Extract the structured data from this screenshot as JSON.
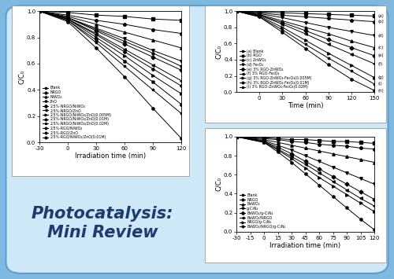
{
  "title": "Photocatalysis:\nMini Review",
  "chart_data": [
    {
      "type": "line",
      "xlabel": "Irradiation time (min)",
      "ylabel": "C/C₀",
      "x": [
        -30,
        0,
        30,
        60,
        90,
        120
      ],
      "xlim": [
        -30,
        120
      ],
      "xticks": [
        -30,
        0,
        30,
        60,
        90,
        120
      ],
      "ylim": [
        0.0,
        1.0
      ],
      "yticks": [
        0.0,
        0.2,
        0.4,
        0.6,
        0.8,
        1.0
      ],
      "grid": false,
      "legend": "lower left",
      "color": "#000000",
      "line_style": "solid",
      "series": [
        {
          "name": "Blank",
          "marker": "square",
          "values": [
            1.0,
            0.99,
            0.97,
            0.96,
            0.94,
            0.93
          ]
        },
        {
          "name": "NRGO",
          "marker": "circle",
          "values": [
            1.0,
            0.97,
            0.93,
            0.9,
            0.86,
            0.83
          ]
        },
        {
          "name": "NiWO₄",
          "marker": "triangle_up",
          "values": [
            1.0,
            0.96,
            0.9,
            0.84,
            0.78,
            0.72
          ]
        },
        {
          "name": "ZnO",
          "marker": "triangle_down",
          "values": [
            1.0,
            0.95,
            0.87,
            0.79,
            0.7,
            0.62
          ]
        },
        {
          "name": "2.5%-NRGO/NiWO₄",
          "marker": "diamond",
          "values": [
            1.0,
            0.95,
            0.85,
            0.75,
            0.65,
            0.55
          ]
        },
        {
          "name": "2.5%-NRGO/ZnO",
          "marker": "triangle_left",
          "values": [
            1.0,
            0.94,
            0.83,
            0.71,
            0.59,
            0.47
          ]
        },
        {
          "name": "2.5%-NRGO/NiWO₄/ZnO(0.005M)",
          "marker": "triangle_right",
          "values": [
            1.0,
            0.94,
            0.8,
            0.66,
            0.51,
            0.37
          ]
        },
        {
          "name": "2.5%-NRGO/NiWO₄/ZnO(0.01M)",
          "marker": "hexagon",
          "values": [
            1.0,
            0.92,
            0.72,
            0.5,
            0.26,
            0.03
          ]
        },
        {
          "name": "2.5%-NRGO/NiWO₄/ZnO(0.02M)",
          "marker": "star",
          "values": [
            1.0,
            0.93,
            0.76,
            0.58,
            0.4,
            0.22
          ]
        },
        {
          "name": "2.5%-RGO/NiWO₄",
          "marker": "pentagon",
          "values": [
            1.0,
            0.95,
            0.86,
            0.77,
            0.68,
            0.58
          ]
        },
        {
          "name": "2.5%-RGO/ZnO",
          "marker": "plus",
          "values": [
            1.0,
            0.94,
            0.82,
            0.69,
            0.56,
            0.43
          ]
        },
        {
          "name": "2.5%-RGO/NiWO₄/ZnO(0.01M)",
          "marker": "x",
          "values": [
            1.0,
            0.93,
            0.78,
            0.62,
            0.46,
            0.29
          ]
        }
      ]
    },
    {
      "type": "line",
      "xlabel": "Time (min)",
      "ylabel": "C/C₀",
      "x": [
        -30,
        0,
        30,
        60,
        90,
        120,
        150
      ],
      "xlim": [
        -30,
        150
      ],
      "xticks": [
        0,
        30,
        60,
        90,
        120,
        150
      ],
      "ylim": [
        0.0,
        1.0
      ],
      "yticks": [
        0.0,
        0.2,
        0.4,
        0.6,
        0.8,
        1.0
      ],
      "grid": false,
      "legend": "lower left",
      "color": "#000000",
      "line_style": "solid",
      "series": [
        {
          "name": "(a) Blank",
          "label": "(a)",
          "marker": "square",
          "values": [
            1.0,
            0.99,
            0.98,
            0.97,
            0.96,
            0.95,
            0.94
          ]
        },
        {
          "name": "(b) RGO",
          "label": "(b)",
          "marker": "circle",
          "values": [
            1.0,
            0.98,
            0.95,
            0.93,
            0.91,
            0.89,
            0.87
          ]
        },
        {
          "name": "(c) ZnWO₄",
          "label": "(c)",
          "marker": "triangle_up",
          "values": [
            1.0,
            0.96,
            0.88,
            0.8,
            0.72,
            0.63,
            0.55
          ]
        },
        {
          "name": "(d) Fe₃O₄",
          "label": "(d)",
          "marker": "triangle_down",
          "values": [
            1.0,
            0.97,
            0.92,
            0.86,
            0.8,
            0.75,
            0.7
          ]
        },
        {
          "name": "(e) 3% RGO-ZnWO₄",
          "label": "(e)",
          "marker": "diamond",
          "values": [
            1.0,
            0.95,
            0.86,
            0.76,
            0.65,
            0.55,
            0.45
          ]
        },
        {
          "name": "(f) 3% RGO-Fe₃O₄",
          "label": "(f)",
          "marker": "triangle_left",
          "values": [
            1.0,
            0.95,
            0.84,
            0.72,
            0.59,
            0.47,
            0.35
          ]
        },
        {
          "name": "(g) 3% RGO-ZnWO₄-Fe₃O₄(0.005M)",
          "label": "(g)",
          "marker": "triangle_right",
          "values": [
            1.0,
            0.94,
            0.8,
            0.64,
            0.48,
            0.33,
            0.18
          ]
        },
        {
          "name": "(h) 3% RGO-ZnWO₄-Fe₃O₄(0.01M)",
          "label": "(h)",
          "marker": "hexagon",
          "values": [
            1.0,
            0.93,
            0.74,
            0.54,
            0.34,
            0.16,
            0.02
          ]
        },
        {
          "name": "(i) 3% RGO-ZnWO₄-Fe₃O₄(0.02M)",
          "label": "(i)",
          "marker": "star",
          "values": [
            1.0,
            0.93,
            0.77,
            0.59,
            0.42,
            0.26,
            0.1
          ]
        }
      ]
    },
    {
      "type": "line",
      "xlabel": "Irradiation time (min)",
      "ylabel": "C/C₀",
      "x": [
        -30,
        0,
        15,
        30,
        45,
        60,
        75,
        90,
        105,
        120
      ],
      "xlim": [
        -30,
        120
      ],
      "xticks": [
        -30,
        -15,
        0,
        15,
        30,
        45,
        60,
        75,
        90,
        105,
        120
      ],
      "ylim": [
        0.0,
        1.0
      ],
      "yticks": [
        0.0,
        0.2,
        0.4,
        0.6,
        0.8,
        1.0
      ],
      "grid": false,
      "legend": "lower left",
      "color": "#000000",
      "line_style": "solid",
      "series": [
        {
          "name": "Blank",
          "marker": "square",
          "values": [
            1.0,
            0.99,
            0.98,
            0.97,
            0.97,
            0.96,
            0.95,
            0.95,
            0.94,
            0.93
          ]
        },
        {
          "name": "NRGO",
          "marker": "circle",
          "values": [
            1.0,
            0.98,
            0.97,
            0.95,
            0.94,
            0.92,
            0.91,
            0.9,
            0.88,
            0.87
          ]
        },
        {
          "name": "BaWO₄",
          "marker": "triangle_up",
          "values": [
            1.0,
            0.97,
            0.94,
            0.91,
            0.88,
            0.85,
            0.82,
            0.79,
            0.76,
            0.73
          ]
        },
        {
          "name": "g-C₃N₄",
          "marker": "triangle_down",
          "values": [
            1.0,
            0.96,
            0.91,
            0.86,
            0.8,
            0.74,
            0.68,
            0.62,
            0.56,
            0.5
          ]
        },
        {
          "name": "BaWO₄/g-C₃N₄",
          "marker": "diamond",
          "values": [
            1.0,
            0.95,
            0.89,
            0.82,
            0.74,
            0.66,
            0.58,
            0.5,
            0.42,
            0.34
          ]
        },
        {
          "name": "BaWO₄/NRGO",
          "marker": "triangle_left",
          "values": [
            1.0,
            0.95,
            0.87,
            0.79,
            0.71,
            0.62,
            0.53,
            0.44,
            0.35,
            0.27
          ]
        },
        {
          "name": "NRGO/g-C₃N₄",
          "marker": "triangle_right",
          "values": [
            1.0,
            0.94,
            0.86,
            0.77,
            0.67,
            0.57,
            0.48,
            0.39,
            0.3,
            0.21
          ]
        },
        {
          "name": "BaWO₄/NRGO/g-C₃N₄",
          "marker": "hexagon",
          "values": [
            1.0,
            0.94,
            0.84,
            0.73,
            0.61,
            0.49,
            0.37,
            0.25,
            0.13,
            0.02
          ]
        }
      ]
    }
  ]
}
